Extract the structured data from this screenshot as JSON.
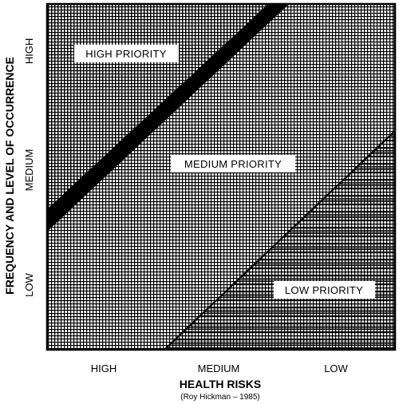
{
  "diagram": {
    "regions": {
      "high": "HIGH PRIORITY",
      "medium": "MEDIUM PRIORITY",
      "low": "LOW PRIORITY"
    },
    "x_axis": {
      "title": "HEALTH RISKS",
      "ticks": [
        "HIGH",
        "MEDIUM",
        "LOW"
      ]
    },
    "y_axis": {
      "title": "FREQUENCY AND LEVEL OF OCCURRENCE",
      "ticks": [
        "LOW",
        "MEDIUM",
        "HIGH"
      ]
    },
    "credit": "(Roy Hickman – 1985)"
  }
}
